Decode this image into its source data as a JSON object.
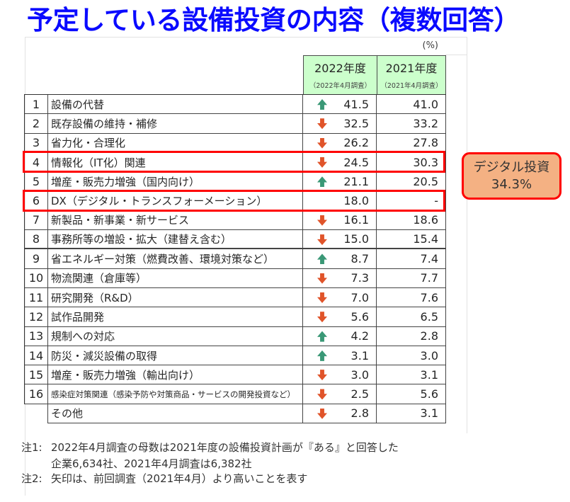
{
  "title": "予定している設備投資の内容（複数回答）",
  "unit": "(%)",
  "table": {
    "columns": [
      {
        "label": "2022年度",
        "sub": "（2022年4月調査）"
      },
      {
        "label": "2021年度",
        "sub": "（2021年4月調査）"
      }
    ],
    "rows": [
      {
        "rank": "1",
        "label": "設備の代替",
        "v2022": "41.5",
        "v2021": "41.0",
        "arrow": "up",
        "highlight": false
      },
      {
        "rank": "2",
        "label": "既存設備の維持・補修",
        "v2022": "32.5",
        "v2021": "33.2",
        "arrow": "down",
        "highlight": false
      },
      {
        "rank": "3",
        "label": "省力化・合理化",
        "v2022": "26.2",
        "v2021": "27.8",
        "arrow": "down",
        "highlight": false
      },
      {
        "rank": "4",
        "label": "情報化（IT化）関連",
        "v2022": "24.5",
        "v2021": "30.3",
        "arrow": "down",
        "highlight": true
      },
      {
        "rank": "5",
        "label": "増産・販売力増強（国内向け）",
        "v2022": "21.1",
        "v2021": "20.5",
        "arrow": "up",
        "highlight": false
      },
      {
        "rank": "6",
        "label": "DX（デジタル・トランスフォーメーション）",
        "v2022": "18.0",
        "v2021": "-",
        "arrow": "",
        "highlight": true
      },
      {
        "rank": "7",
        "label": "新製品・新事業・新サービス",
        "v2022": "16.1",
        "v2021": "18.6",
        "arrow": "down",
        "highlight": false
      },
      {
        "rank": "8",
        "label": "事務所等の増設・拡大（建替え含む）",
        "v2022": "15.0",
        "v2021": "15.4",
        "arrow": "down",
        "highlight": false
      },
      {
        "rank": "9",
        "label": "省エネルギー対策（燃費改善、環境対策など）",
        "v2022": "8.7",
        "v2021": "7.4",
        "arrow": "up",
        "highlight": false
      },
      {
        "rank": "10",
        "label": "物流関連（倉庫等）",
        "v2022": "7.3",
        "v2021": "7.7",
        "arrow": "down",
        "highlight": false
      },
      {
        "rank": "11",
        "label": "研究開発（R&D）",
        "v2022": "7.0",
        "v2021": "7.6",
        "arrow": "down",
        "highlight": false
      },
      {
        "rank": "12",
        "label": "試作品開発",
        "v2022": "5.6",
        "v2021": "6.5",
        "arrow": "down",
        "highlight": false
      },
      {
        "rank": "13",
        "label": "規制への対応",
        "v2022": "4.2",
        "v2021": "2.8",
        "arrow": "up",
        "highlight": false
      },
      {
        "rank": "14",
        "label": "防災・減災設備の取得",
        "v2022": "3.1",
        "v2021": "3.0",
        "arrow": "up",
        "highlight": false
      },
      {
        "rank": "15",
        "label": "増産・販売力増強（輸出向け）",
        "v2022": "3.0",
        "v2021": "3.1",
        "arrow": "down",
        "highlight": false
      },
      {
        "rank": "16",
        "label": "感染症対策関連（感染予防や対策商品・サービスの開発投資など）",
        "v2022": "2.5",
        "v2021": "5.6",
        "arrow": "down",
        "highlight": false
      },
      {
        "rank": "",
        "label": "その他",
        "v2022": "2.8",
        "v2021": "3.1",
        "arrow": "down",
        "highlight": false
      }
    ]
  },
  "callout": {
    "label": "デジタル投資",
    "value": "34.3%"
  },
  "notes": [
    {
      "label": "注1:",
      "lines": [
        "2022年4月調査の母数は2021年度の設備投資計画が『ある』と回答した",
        "企業6,634社、2021年4月調査は6,382社"
      ]
    },
    {
      "label": "注2:",
      "lines": [
        "矢印は、前回調査（2021年4月）より高いことを表す"
      ]
    }
  ],
  "colors": {
    "title": "#0a0aff",
    "header_bg": "#ccffcc",
    "highlight_border": "#ff0000",
    "callout_bg": "#f4b183",
    "arrow_up": "#3a9876",
    "arrow_down": "#e0542a"
  },
  "chart_data": {
    "type": "table",
    "title": "予定している設備投資の内容（複数回答）",
    "unit": "%",
    "categories": [
      "設備の代替",
      "既存設備の維持・補修",
      "省力化・合理化",
      "情報化（IT化）関連",
      "増産・販売力増強（国内向け）",
      "DX（デジタル・トランスフォーメーション）",
      "新製品・新事業・新サービス",
      "事務所等の増設・拡大（建替え含む）",
      "省エネルギー対策（燃費改善、環境対策など）",
      "物流関連（倉庫等）",
      "研究開発（R&D）",
      "試作品開発",
      "規制への対応",
      "防災・減災設備の取得",
      "増産・販売力増強（輸出向け）",
      "感染症対策関連（感染予防や対策商品・サービスの開発投資など）",
      "その他"
    ],
    "series": [
      {
        "name": "2022年度（2022年4月調査）",
        "values": [
          41.5,
          32.5,
          26.2,
          24.5,
          21.1,
          18.0,
          16.1,
          15.0,
          8.7,
          7.3,
          7.0,
          5.6,
          4.2,
          3.1,
          3.0,
          2.5,
          2.8
        ]
      },
      {
        "name": "2021年度（2021年4月調査）",
        "values": [
          41.0,
          33.2,
          27.8,
          30.3,
          20.5,
          null,
          18.6,
          15.4,
          7.4,
          7.7,
          7.6,
          6.5,
          2.8,
          3.0,
          3.1,
          5.6,
          3.1
        ]
      }
    ],
    "trend_vs_previous": [
      "up",
      "down",
      "down",
      "down",
      "up",
      null,
      "down",
      "down",
      "up",
      "down",
      "down",
      "down",
      "up",
      "up",
      "down",
      "down",
      "down"
    ],
    "highlighted_categories": [
      "情報化（IT化）関連",
      "DX（デジタル・トランスフォーメーション）"
    ],
    "annotation": {
      "label": "デジタル投資",
      "value": "34.3%"
    }
  }
}
